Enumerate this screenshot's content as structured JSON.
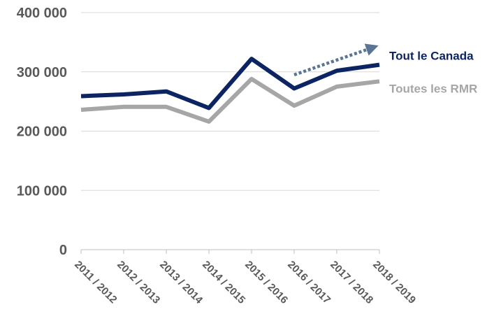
{
  "chart_data": {
    "type": "line",
    "title": "",
    "xlabel": "",
    "ylabel": "",
    "categories": [
      "2011 / 2012",
      "2012 / 2013",
      "2013 / 2014",
      "2014 / 2015",
      "2015 / 2016",
      "2016 / 2017",
      "2017 / 2018",
      "2018 / 2019"
    ],
    "ylim": [
      0,
      400000
    ],
    "yticks": [
      0,
      100000,
      200000,
      300000,
      400000
    ],
    "ytick_labels": [
      "0",
      "100 000",
      "200 000",
      "300 000",
      "400 000"
    ],
    "grid": true,
    "legend_placement": "right, at line ends",
    "series": [
      {
        "name": "Tout le Canada",
        "color": "#0d2462",
        "values": [
          259000,
          262000,
          267000,
          239000,
          322000,
          272000,
          302000,
          312000
        ]
      },
      {
        "name": "Toutes les RMR",
        "color": "#a6a6a6",
        "values": [
          236000,
          241000,
          241000,
          216000,
          288000,
          243000,
          275000,
          284000
        ]
      }
    ],
    "annotations": [
      {
        "type": "dotted-arrow",
        "color": "#5a7494",
        "from": {
          "x": "2016 / 2017",
          "y": 295000
        },
        "to": {
          "x": "2018 / 2019",
          "y": 340000
        }
      }
    ]
  }
}
